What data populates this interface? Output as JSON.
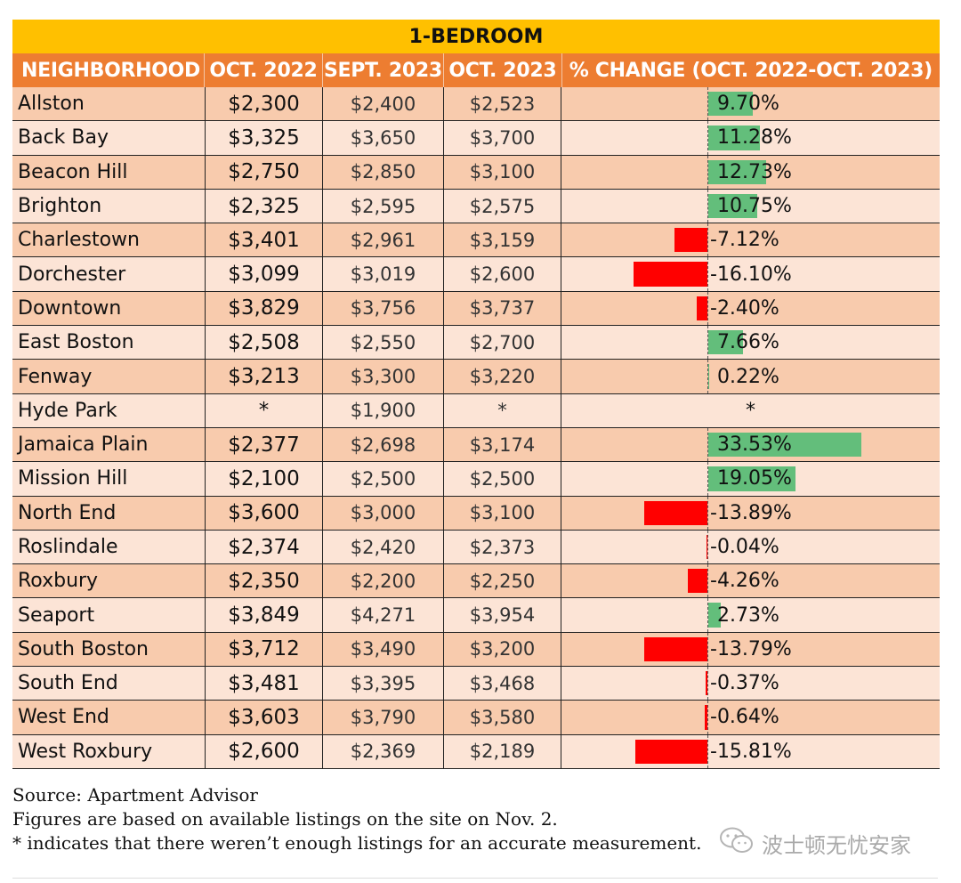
{
  "table": {
    "title": "1-BEDROOM",
    "headers": [
      "NEIGHBORHOOD",
      "OCT. 2022",
      "SEPT. 2023",
      "OCT. 2023",
      "% CHANGE (OCT. 2022-OCT. 2023)"
    ]
  },
  "chart_data": {
    "type": "table",
    "title": "1-BEDROOM",
    "columns": [
      "NEIGHBORHOOD",
      "OCT. 2022",
      "SEPT. 2023",
      "OCT. 2023",
      "% CHANGE (OCT. 2022-OCT. 2023)"
    ],
    "bar_colors": {
      "positive": "#63be7b",
      "negative": "#ff0000"
    },
    "bar_scale_max_pct": 33.53,
    "rows": [
      {
        "name": "Allston",
        "oct2022": "$2,300",
        "sept2023": "$2,400",
        "oct2023": "$2,523",
        "change": "9.70%",
        "change_value": 9.7
      },
      {
        "name": "Back Bay",
        "oct2022": "$3,325",
        "sept2023": "$3,650",
        "oct2023": "$3,700",
        "change": "11.28%",
        "change_value": 11.28
      },
      {
        "name": "Beacon Hill",
        "oct2022": "$2,750",
        "sept2023": "$2,850",
        "oct2023": "$3,100",
        "change": "12.73%",
        "change_value": 12.73
      },
      {
        "name": "Brighton",
        "oct2022": "$2,325",
        "sept2023": "$2,595",
        "oct2023": "$2,575",
        "change": "10.75%",
        "change_value": 10.75
      },
      {
        "name": "Charlestown",
        "oct2022": "$3,401",
        "sept2023": "$2,961",
        "oct2023": "$3,159",
        "change": "-7.12%",
        "change_value": -7.12
      },
      {
        "name": "Dorchester",
        "oct2022": "$3,099",
        "sept2023": "$3,019",
        "oct2023": "$2,600",
        "change": "-16.10%",
        "change_value": -16.1
      },
      {
        "name": "Downtown",
        "oct2022": "$3,829",
        "sept2023": "$3,756",
        "oct2023": "$3,737",
        "change": "-2.40%",
        "change_value": -2.4
      },
      {
        "name": "East Boston",
        "oct2022": "$2,508",
        "sept2023": "$2,550",
        "oct2023": "$2,700",
        "change": "7.66%",
        "change_value": 7.66
      },
      {
        "name": "Fenway",
        "oct2022": "$3,213",
        "sept2023": "$3,300",
        "oct2023": "$3,220",
        "change": "0.22%",
        "change_value": 0.22
      },
      {
        "name": "Hyde Park",
        "oct2022": "*",
        "sept2023": "$1,900",
        "oct2023": "*",
        "change": "*",
        "change_value": null
      },
      {
        "name": "Jamaica Plain",
        "oct2022": "$2,377",
        "sept2023": "$2,698",
        "oct2023": "$3,174",
        "change": "33.53%",
        "change_value": 33.53
      },
      {
        "name": "Mission Hill",
        "oct2022": "$2,100",
        "sept2023": "$2,500",
        "oct2023": "$2,500",
        "change": "19.05%",
        "change_value": 19.05
      },
      {
        "name": "North End",
        "oct2022": "$3,600",
        "sept2023": "$3,000",
        "oct2023": "$3,100",
        "change": "-13.89%",
        "change_value": -13.89
      },
      {
        "name": "Roslindale",
        "oct2022": "$2,374",
        "sept2023": "$2,420",
        "oct2023": "$2,373",
        "change": "-0.04%",
        "change_value": -0.04
      },
      {
        "name": "Roxbury",
        "oct2022": "$2,350",
        "sept2023": "$2,200",
        "oct2023": "$2,250",
        "change": "-4.26%",
        "change_value": -4.26
      },
      {
        "name": "Seaport",
        "oct2022": "$3,849",
        "sept2023": "$4,271",
        "oct2023": "$3,954",
        "change": "2.73%",
        "change_value": 2.73
      },
      {
        "name": "South Boston",
        "oct2022": "$3,712",
        "sept2023": "$3,490",
        "oct2023": "$3,200",
        "change": "-13.79%",
        "change_value": -13.79
      },
      {
        "name": "South End",
        "oct2022": "$3,481",
        "sept2023": "$3,395",
        "oct2023": "$3,468",
        "change": "-0.37%",
        "change_value": -0.37
      },
      {
        "name": "West End",
        "oct2022": "$3,603",
        "sept2023": "$3,790",
        "oct2023": "$3,580",
        "change": "-0.64%",
        "change_value": -0.64
      },
      {
        "name": "West Roxbury",
        "oct2022": "$2,600",
        "sept2023": "$2,369",
        "oct2023": "$2,189",
        "change": "-15.81%",
        "change_value": -15.81
      }
    ]
  },
  "footer": {
    "source": "Source: Apartment Advisor",
    "note1": "Figures are based on available listings on the site on Nov. 2.",
    "note2": "* indicates that there weren’t enough listings for an accurate measurement."
  },
  "watermark": {
    "icon": "wechat-icon",
    "text": "波士顿无忧安家"
  }
}
